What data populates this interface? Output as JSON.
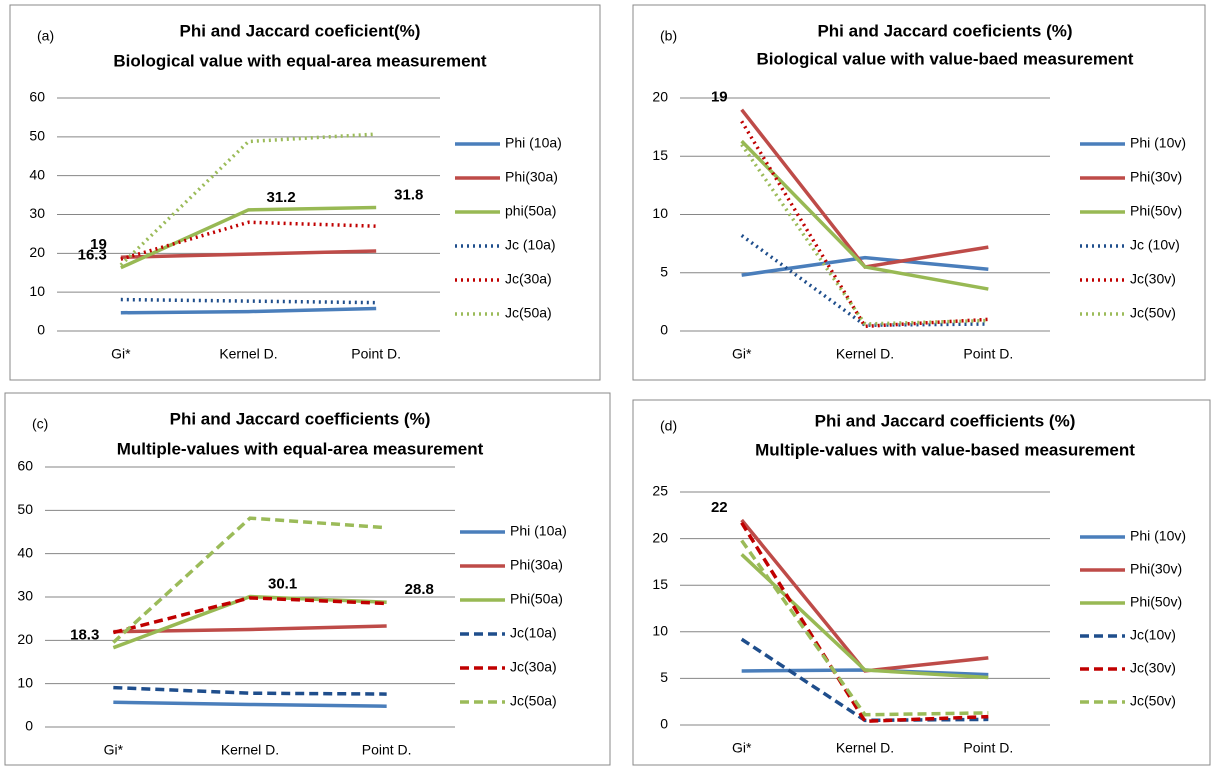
{
  "chart_data": [
    {
      "type": "line",
      "panel_label": "(a)",
      "title": "Phi and Jaccard coeficient(%)",
      "subtitle": "Biological value with equal-area measurement",
      "categories": [
        "Gi*",
        "Kernel D.",
        "Point D."
      ],
      "ylim": [
        0,
        60
      ],
      "yticks": [
        0,
        10,
        20,
        30,
        40,
        50,
        60
      ],
      "grid": true,
      "series": [
        {
          "name": "Phi (10a)",
          "color": "#4a7ebb",
          "dash": "solid",
          "values": [
            4.7,
            5.0,
            5.8
          ]
        },
        {
          "name": "Phi(30a)",
          "color": "#be4b48",
          "dash": "solid",
          "values": [
            19,
            19.8,
            20.6
          ],
          "value_labels": [
            "19",
            null,
            null
          ]
        },
        {
          "name": "phi(50a)",
          "color": "#98b954",
          "dash": "solid",
          "values": [
            16.3,
            31.2,
            31.8
          ],
          "value_labels": [
            "16.3",
            "31.2",
            "31.8"
          ]
        },
        {
          "name": "Jc (10a)",
          "color": "#1f4e8c",
          "dash": "dotted",
          "values": [
            8.1,
            7.7,
            7.3
          ]
        },
        {
          "name": "Jc(30a)",
          "color": "#c00000",
          "dash": "dotted",
          "values": [
            18.5,
            28,
            27
          ]
        },
        {
          "name": "Jc(50a)",
          "color": "#9bbb59",
          "dash": "dotted",
          "values": [
            17,
            48.8,
            50.7
          ]
        }
      ]
    },
    {
      "type": "line",
      "panel_label": "(b)",
      "title": "Phi and Jaccard coeficients (%)",
      "subtitle": "Biological value with value-baed measurement",
      "categories": [
        "Gi*",
        "Kernel D.",
        "Point D."
      ],
      "ylim": [
        0,
        20
      ],
      "yticks": [
        0,
        5,
        10,
        15,
        20
      ],
      "grid": true,
      "series": [
        {
          "name": "Phi (10v)",
          "color": "#4a7ebb",
          "dash": "solid",
          "values": [
            4.8,
            6.3,
            5.3
          ]
        },
        {
          "name": "Phi(30v)",
          "color": "#be4b48",
          "dash": "solid",
          "values": [
            19,
            5.5,
            7.2
          ],
          "value_labels": [
            "19",
            null,
            null
          ]
        },
        {
          "name": "Phi(50v)",
          "color": "#98b954",
          "dash": "solid",
          "values": [
            16.3,
            5.5,
            3.6
          ]
        },
        {
          "name": "Jc (10v)",
          "color": "#1f4e8c",
          "dash": "dotted",
          "values": [
            8.2,
            0.5,
            0.6
          ]
        },
        {
          "name": "Jc(30v)",
          "color": "#c00000",
          "dash": "dotted",
          "values": [
            18,
            0.4,
            1.0
          ]
        },
        {
          "name": "Jc(50v)",
          "color": "#9bbb59",
          "dash": "dotted",
          "values": [
            16,
            0.6,
            0.9
          ]
        }
      ]
    },
    {
      "type": "line",
      "panel_label": "(c)",
      "title": "Phi and Jaccard coefficients (%)",
      "subtitle": "Multiple-values with equal-area measurement",
      "categories": [
        "Gi*",
        "Kernel D.",
        "Point D."
      ],
      "ylim": [
        0,
        60
      ],
      "yticks": [
        0,
        10,
        20,
        30,
        40,
        50,
        60
      ],
      "grid": true,
      "series": [
        {
          "name": "Phi (10a)",
          "color": "#4a7ebb",
          "dash": "solid",
          "values": [
            5.7,
            5.2,
            4.8
          ]
        },
        {
          "name": "Phi(30a)",
          "color": "#be4b48",
          "dash": "solid",
          "values": [
            22,
            22.5,
            23.3
          ]
        },
        {
          "name": "Phi(50a)",
          "color": "#98b954",
          "dash": "solid",
          "values": [
            18.3,
            30.1,
            28.8
          ],
          "value_labels": [
            "18.3",
            "30.1",
            "28.8"
          ]
        },
        {
          "name": "Jc(10a)",
          "color": "#1f4e8c",
          "dash": "dashed",
          "values": [
            9.1,
            7.8,
            7.6
          ]
        },
        {
          "name": "Jc(30a)",
          "color": "#c00000",
          "dash": "dashed",
          "values": [
            21.8,
            29.8,
            28.5
          ]
        },
        {
          "name": "Jc(50a)",
          "color": "#9bbb59",
          "dash": "dashed",
          "values": [
            19.5,
            48.2,
            46
          ]
        }
      ]
    },
    {
      "type": "line",
      "panel_label": "(d)",
      "title": "Phi and Jaccard coefficients (%)",
      "subtitle": "Multiple-values with value-based measurement",
      "categories": [
        "Gi*",
        "Kernel D.",
        "Point D."
      ],
      "ylim": [
        0,
        25
      ],
      "yticks": [
        0,
        5,
        10,
        15,
        20,
        25
      ],
      "grid": true,
      "series": [
        {
          "name": "Phi (10v)",
          "color": "#4a7ebb",
          "dash": "solid",
          "values": [
            5.8,
            5.9,
            5.4
          ]
        },
        {
          "name": "Phi(30v)",
          "color": "#be4b48",
          "dash": "solid",
          "values": [
            22,
            5.8,
            7.2
          ],
          "value_labels": [
            "22",
            null,
            null
          ]
        },
        {
          "name": "Phi(50v)",
          "color": "#98b954",
          "dash": "solid",
          "values": [
            18.3,
            5.9,
            5.1
          ]
        },
        {
          "name": "Jc(10v)",
          "color": "#1f4e8c",
          "dash": "dashed",
          "values": [
            9.2,
            0.5,
            0.6
          ]
        },
        {
          "name": "Jc(30v)",
          "color": "#c00000",
          "dash": "dashed",
          "values": [
            21.7,
            0.4,
            0.9
          ]
        },
        {
          "name": "Jc(50v)",
          "color": "#9bbb59",
          "dash": "dashed",
          "values": [
            19.8,
            1.1,
            1.3
          ]
        }
      ]
    }
  ]
}
